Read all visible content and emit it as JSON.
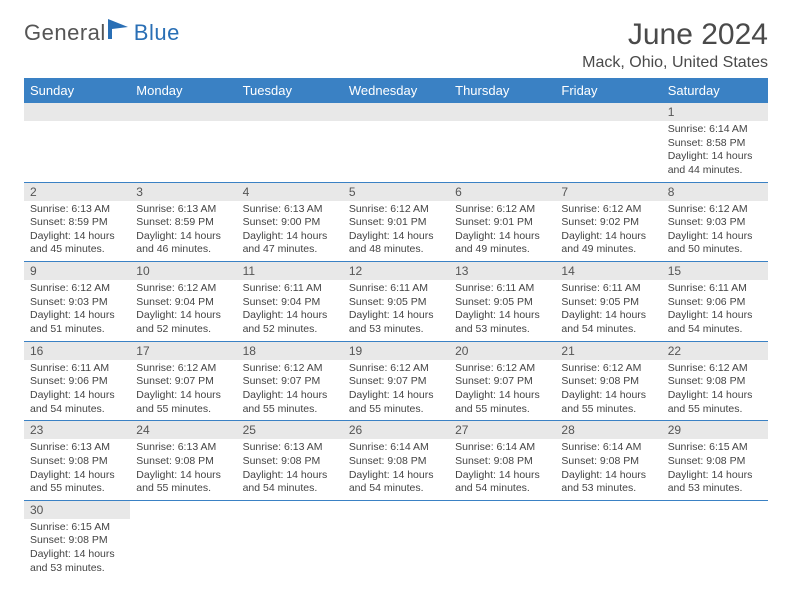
{
  "logo": {
    "general": "General",
    "blue": "Blue"
  },
  "title": "June 2024",
  "subtitle": "Mack, Ohio, United States",
  "colors": {
    "header_bg": "#3a81c4",
    "header_fg": "#ffffff",
    "daynum_bg": "#e8e8e8",
    "row_divider": "#3a81c4",
    "text": "#444444",
    "title_color": "#4a4a4a"
  },
  "day_headers": [
    "Sunday",
    "Monday",
    "Tuesday",
    "Wednesday",
    "Thursday",
    "Friday",
    "Saturday"
  ],
  "weeks": [
    [
      {
        "n": "",
        "lines": []
      },
      {
        "n": "",
        "lines": []
      },
      {
        "n": "",
        "lines": []
      },
      {
        "n": "",
        "lines": []
      },
      {
        "n": "",
        "lines": []
      },
      {
        "n": "",
        "lines": []
      },
      {
        "n": "1",
        "lines": [
          "Sunrise: 6:14 AM",
          "Sunset: 8:58 PM",
          "Daylight: 14 hours",
          "and 44 minutes."
        ]
      }
    ],
    [
      {
        "n": "2",
        "lines": [
          "Sunrise: 6:13 AM",
          "Sunset: 8:59 PM",
          "Daylight: 14 hours",
          "and 45 minutes."
        ]
      },
      {
        "n": "3",
        "lines": [
          "Sunrise: 6:13 AM",
          "Sunset: 8:59 PM",
          "Daylight: 14 hours",
          "and 46 minutes."
        ]
      },
      {
        "n": "4",
        "lines": [
          "Sunrise: 6:13 AM",
          "Sunset: 9:00 PM",
          "Daylight: 14 hours",
          "and 47 minutes."
        ]
      },
      {
        "n": "5",
        "lines": [
          "Sunrise: 6:12 AM",
          "Sunset: 9:01 PM",
          "Daylight: 14 hours",
          "and 48 minutes."
        ]
      },
      {
        "n": "6",
        "lines": [
          "Sunrise: 6:12 AM",
          "Sunset: 9:01 PM",
          "Daylight: 14 hours",
          "and 49 minutes."
        ]
      },
      {
        "n": "7",
        "lines": [
          "Sunrise: 6:12 AM",
          "Sunset: 9:02 PM",
          "Daylight: 14 hours",
          "and 49 minutes."
        ]
      },
      {
        "n": "8",
        "lines": [
          "Sunrise: 6:12 AM",
          "Sunset: 9:03 PM",
          "Daylight: 14 hours",
          "and 50 minutes."
        ]
      }
    ],
    [
      {
        "n": "9",
        "lines": [
          "Sunrise: 6:12 AM",
          "Sunset: 9:03 PM",
          "Daylight: 14 hours",
          "and 51 minutes."
        ]
      },
      {
        "n": "10",
        "lines": [
          "Sunrise: 6:12 AM",
          "Sunset: 9:04 PM",
          "Daylight: 14 hours",
          "and 52 minutes."
        ]
      },
      {
        "n": "11",
        "lines": [
          "Sunrise: 6:11 AM",
          "Sunset: 9:04 PM",
          "Daylight: 14 hours",
          "and 52 minutes."
        ]
      },
      {
        "n": "12",
        "lines": [
          "Sunrise: 6:11 AM",
          "Sunset: 9:05 PM",
          "Daylight: 14 hours",
          "and 53 minutes."
        ]
      },
      {
        "n": "13",
        "lines": [
          "Sunrise: 6:11 AM",
          "Sunset: 9:05 PM",
          "Daylight: 14 hours",
          "and 53 minutes."
        ]
      },
      {
        "n": "14",
        "lines": [
          "Sunrise: 6:11 AM",
          "Sunset: 9:05 PM",
          "Daylight: 14 hours",
          "and 54 minutes."
        ]
      },
      {
        "n": "15",
        "lines": [
          "Sunrise: 6:11 AM",
          "Sunset: 9:06 PM",
          "Daylight: 14 hours",
          "and 54 minutes."
        ]
      }
    ],
    [
      {
        "n": "16",
        "lines": [
          "Sunrise: 6:11 AM",
          "Sunset: 9:06 PM",
          "Daylight: 14 hours",
          "and 54 minutes."
        ]
      },
      {
        "n": "17",
        "lines": [
          "Sunrise: 6:12 AM",
          "Sunset: 9:07 PM",
          "Daylight: 14 hours",
          "and 55 minutes."
        ]
      },
      {
        "n": "18",
        "lines": [
          "Sunrise: 6:12 AM",
          "Sunset: 9:07 PM",
          "Daylight: 14 hours",
          "and 55 minutes."
        ]
      },
      {
        "n": "19",
        "lines": [
          "Sunrise: 6:12 AM",
          "Sunset: 9:07 PM",
          "Daylight: 14 hours",
          "and 55 minutes."
        ]
      },
      {
        "n": "20",
        "lines": [
          "Sunrise: 6:12 AM",
          "Sunset: 9:07 PM",
          "Daylight: 14 hours",
          "and 55 minutes."
        ]
      },
      {
        "n": "21",
        "lines": [
          "Sunrise: 6:12 AM",
          "Sunset: 9:08 PM",
          "Daylight: 14 hours",
          "and 55 minutes."
        ]
      },
      {
        "n": "22",
        "lines": [
          "Sunrise: 6:12 AM",
          "Sunset: 9:08 PM",
          "Daylight: 14 hours",
          "and 55 minutes."
        ]
      }
    ],
    [
      {
        "n": "23",
        "lines": [
          "Sunrise: 6:13 AM",
          "Sunset: 9:08 PM",
          "Daylight: 14 hours",
          "and 55 minutes."
        ]
      },
      {
        "n": "24",
        "lines": [
          "Sunrise: 6:13 AM",
          "Sunset: 9:08 PM",
          "Daylight: 14 hours",
          "and 55 minutes."
        ]
      },
      {
        "n": "25",
        "lines": [
          "Sunrise: 6:13 AM",
          "Sunset: 9:08 PM",
          "Daylight: 14 hours",
          "and 54 minutes."
        ]
      },
      {
        "n": "26",
        "lines": [
          "Sunrise: 6:14 AM",
          "Sunset: 9:08 PM",
          "Daylight: 14 hours",
          "and 54 minutes."
        ]
      },
      {
        "n": "27",
        "lines": [
          "Sunrise: 6:14 AM",
          "Sunset: 9:08 PM",
          "Daylight: 14 hours",
          "and 54 minutes."
        ]
      },
      {
        "n": "28",
        "lines": [
          "Sunrise: 6:14 AM",
          "Sunset: 9:08 PM",
          "Daylight: 14 hours",
          "and 53 minutes."
        ]
      },
      {
        "n": "29",
        "lines": [
          "Sunrise: 6:15 AM",
          "Sunset: 9:08 PM",
          "Daylight: 14 hours",
          "and 53 minutes."
        ]
      }
    ],
    [
      {
        "n": "30",
        "lines": [
          "Sunrise: 6:15 AM",
          "Sunset: 9:08 PM",
          "Daylight: 14 hours",
          "and 53 minutes."
        ]
      },
      {
        "n": "",
        "lines": []
      },
      {
        "n": "",
        "lines": []
      },
      {
        "n": "",
        "lines": []
      },
      {
        "n": "",
        "lines": []
      },
      {
        "n": "",
        "lines": []
      },
      {
        "n": "",
        "lines": []
      }
    ]
  ]
}
